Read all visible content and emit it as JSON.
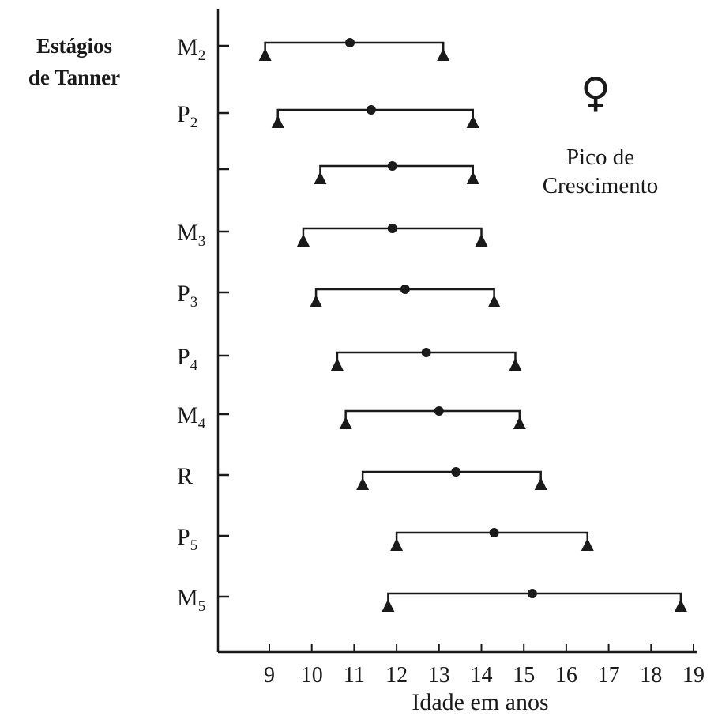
{
  "chart_data": {
    "type": "range",
    "title_lines": [
      "Estágios",
      "de Tanner"
    ],
    "xlabel": "Idade em anos",
    "xlim": [
      8,
      19
    ],
    "xticks": [
      9,
      10,
      11,
      12,
      13,
      14,
      15,
      16,
      17,
      18,
      19
    ],
    "annotation": {
      "symbol": "♀",
      "lines": [
        "Pico de",
        "Crescimento"
      ]
    },
    "rows": [
      {
        "label": "M",
        "sub": "2",
        "low": 8.9,
        "mid": 10.9,
        "high": 13.1
      },
      {
        "label": "P",
        "sub": "2",
        "low": 9.2,
        "mid": 11.4,
        "high": 13.8
      },
      {
        "label": "",
        "sub": "",
        "low": 10.2,
        "mid": 11.9,
        "high": 13.8
      },
      {
        "label": "M",
        "sub": "3",
        "low": 9.8,
        "mid": 11.9,
        "high": 14.0
      },
      {
        "label": "P",
        "sub": "3",
        "low": 10.1,
        "mid": 12.2,
        "high": 14.3
      },
      {
        "label": "P",
        "sub": "4",
        "low": 10.6,
        "mid": 12.7,
        "high": 14.8
      },
      {
        "label": "M",
        "sub": "4",
        "low": 10.8,
        "mid": 13.0,
        "high": 14.9
      },
      {
        "label": "R",
        "sub": "",
        "low": 11.2,
        "mid": 13.4,
        "high": 15.4
      },
      {
        "label": "P",
        "sub": "5",
        "low": 12.0,
        "mid": 14.3,
        "high": 16.5
      },
      {
        "label": "M",
        "sub": "5",
        "low": 11.8,
        "mid": 15.2,
        "high": 18.7
      }
    ]
  }
}
